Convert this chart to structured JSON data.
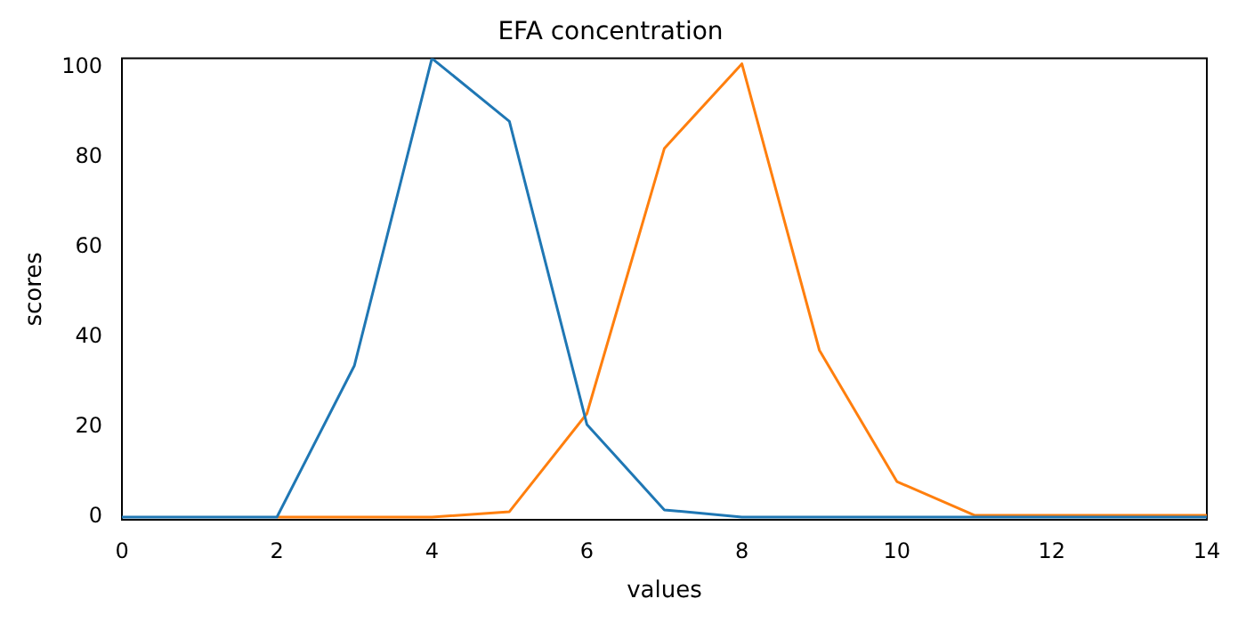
{
  "chart_data": {
    "type": "line",
    "title": "EFA concentration",
    "xlabel": "values",
    "ylabel": "scores",
    "x": [
      0,
      1,
      2,
      3,
      4,
      5,
      6,
      7,
      8,
      9,
      10,
      11,
      12,
      13,
      14
    ],
    "series": [
      {
        "color": "#1f77b4",
        "values": [
          0,
          0,
          0,
          33.7,
          102,
          88,
          20.6,
          1.6,
          0,
          0,
          0,
          0,
          0,
          0,
          0
        ]
      },
      {
        "color": "#ff7f0e",
        "values": [
          null,
          null,
          0,
          0,
          0,
          1.2,
          23,
          82,
          100.8,
          37.1,
          7.9,
          0.4,
          0.4,
          0.4,
          0.4
        ]
      }
    ],
    "xlim": [
      0,
      14
    ],
    "xticks": [
      0,
      2,
      4,
      6,
      8,
      10,
      12,
      14
    ],
    "ylim": [
      -0.6,
      102
    ],
    "yticks": [
      0,
      20,
      40,
      60,
      80,
      100
    ],
    "grid": false,
    "legend": false,
    "marker": "none",
    "line_style": "solid"
  }
}
